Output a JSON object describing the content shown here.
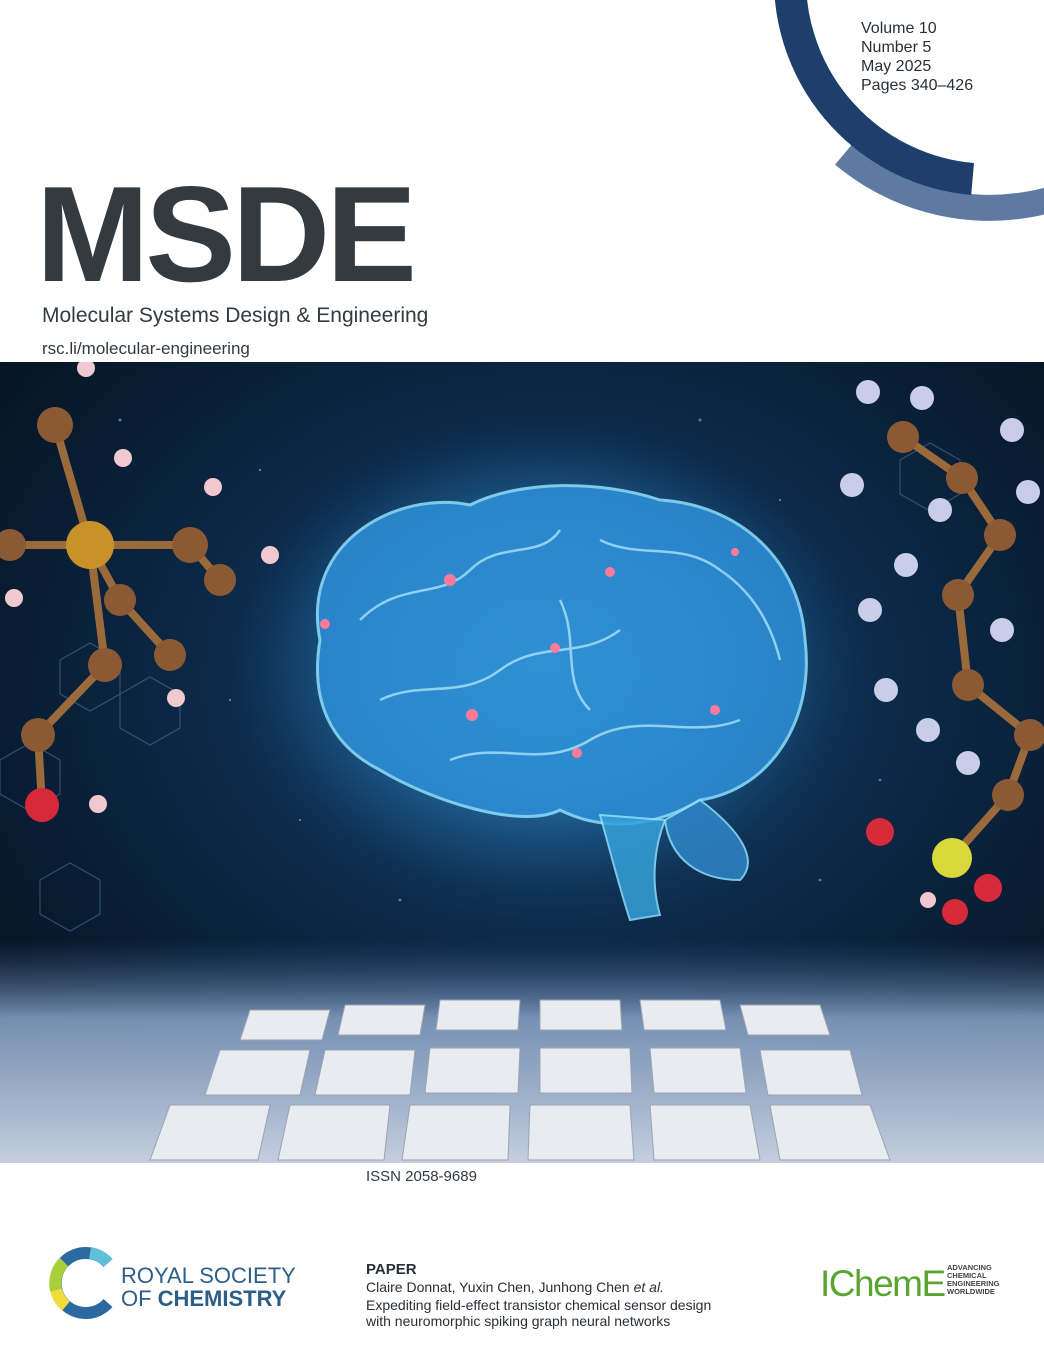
{
  "cover": {
    "issue": {
      "volume": "Volume 10",
      "number": "Number 5",
      "date": "May 2025",
      "pages": "Pages 340–426"
    },
    "journal": {
      "abbreviation": "MSDE",
      "name": "Molecular Systems Design & Engineering",
      "url": "rsc.li/molecular-engineering"
    },
    "issn": "ISSN 2058-9689",
    "publisher": {
      "line1": "ROYAL SOCIETY",
      "line2_prefix": "OF",
      "line2_main": "CHEMISTRY"
    },
    "featured": {
      "label": "PAPER",
      "authors": "Claire Donnat, Yuxin Chen, Junhong Chen",
      "authors_suffix": "et al.",
      "title_lines": [
        "Expediting field-effect transistor chemical sensor design",
        "with neuromorphic spiking graph neural networks"
      ]
    },
    "partner": {
      "name": "IChemE",
      "tagline": [
        "ADVANCING",
        "CHEMICAL",
        "ENGINEERING",
        "WORLDWIDE"
      ]
    }
  }
}
